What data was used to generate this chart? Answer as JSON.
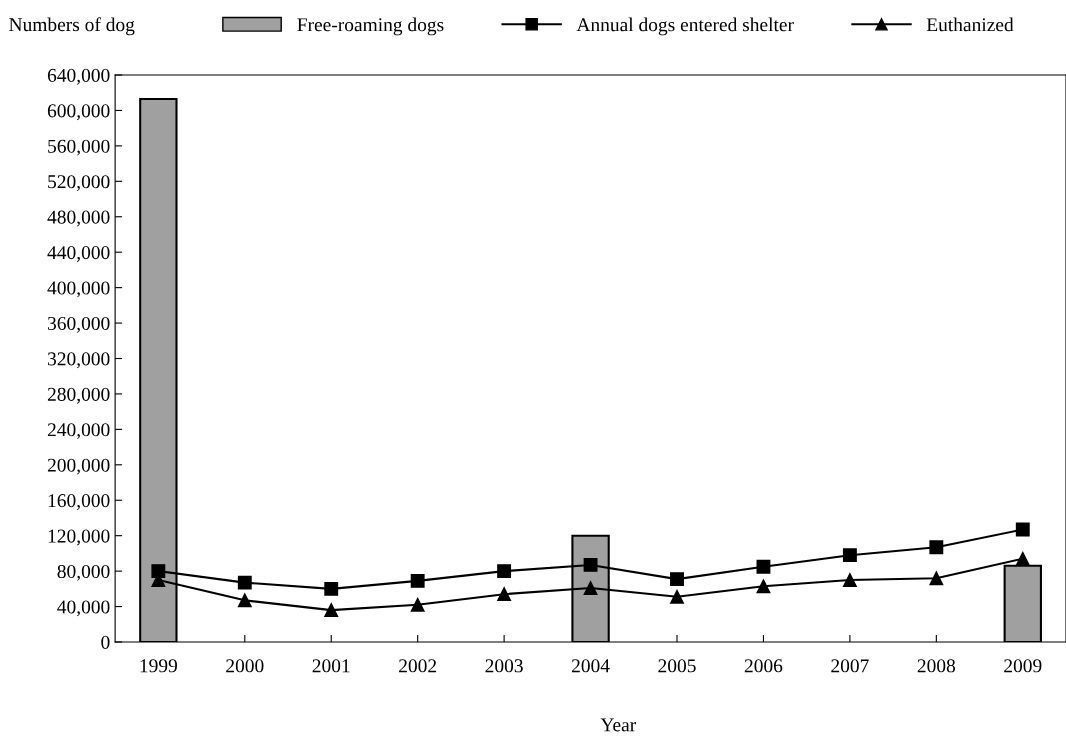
{
  "chart_data": {
    "type": "bar",
    "ylabel": "Numbers of dog",
    "xlabel": "Year",
    "categories": [
      "1999",
      "2000",
      "2001",
      "2002",
      "2003",
      "2004",
      "2005",
      "2006",
      "2007",
      "2008",
      "2009"
    ],
    "series": [
      {
        "name": "Free-roaming dogs",
        "color": "#a0a0a0",
        "values": [
          613000,
          null,
          null,
          null,
          null,
          120000,
          null,
          null,
          null,
          null,
          86000
        ]
      },
      {
        "name": "Annual dogs entered shelter",
        "type": "line",
        "color": "#000000",
        "marker": "square",
        "values": [
          80000,
          67000,
          60000,
          69000,
          80000,
          87000,
          71000,
          85000,
          98000,
          107000,
          127000
        ]
      },
      {
        "name": "Euthanized",
        "type": "line",
        "color": "#000000",
        "marker": "triangle",
        "values": [
          70000,
          47000,
          36000,
          42000,
          54000,
          61000,
          51000,
          63000,
          70000,
          72000,
          94000
        ]
      }
    ],
    "ylim": [
      0,
      640000
    ],
    "yticks": [
      0,
      {
        "value": 40000,
        "label": "40,000"
      },
      {
        "value": 80000,
        "label": "80,000"
      },
      {
        "value": 120000,
        "label": "120,000"
      },
      {
        "value": 160000,
        "label": "160,000"
      },
      {
        "value": 200000,
        "label": "200,000"
      },
      {
        "value": 240000,
        "label": "240,000"
      },
      {
        "value": 280000,
        "label": "280,000"
      },
      {
        "value": 320000,
        "label": "320,000"
      },
      {
        "value": 360000,
        "label": "360,000"
      },
      {
        "value": 400000,
        "label": "400,000"
      },
      {
        "value": 440000,
        "label": "440,000"
      },
      {
        "value": 480000,
        "label": "480,000"
      },
      {
        "value": 520000,
        "label": "520,000"
      },
      {
        "value": 560000,
        "label": "560,000"
      },
      {
        "value": 600000,
        "label": "600,000"
      },
      {
        "value": 640000,
        "label": "640,000"
      }
    ],
    "legend": "top",
    "grid": false
  }
}
